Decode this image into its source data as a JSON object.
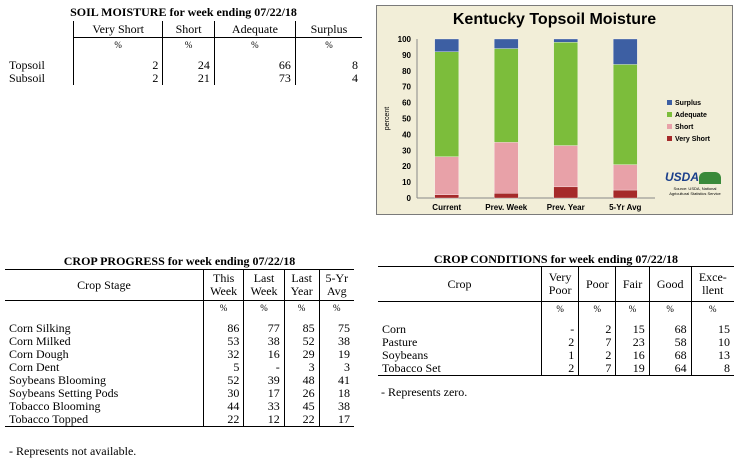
{
  "soil": {
    "title": "SOIL MOISTURE for week ending 07/22/18",
    "headers": [
      "Very Short",
      "Short",
      "Adequate",
      "Surplus"
    ],
    "unit": "%",
    "rows": [
      {
        "label": "Topsoil",
        "values": [
          "2",
          "24",
          "66",
          "8"
        ]
      },
      {
        "label": "Subsoil",
        "values": [
          "2",
          "21",
          "73",
          "4"
        ]
      }
    ]
  },
  "chart_data": {
    "type": "bar",
    "stacked": true,
    "title": "Kentucky Topsoil Moisture",
    "ylabel": "percent",
    "xlabel": "",
    "ylim": [
      0,
      100
    ],
    "yticks": [
      "0",
      "10",
      "20",
      "30",
      "40",
      "50",
      "60",
      "70",
      "80",
      "90",
      "100"
    ],
    "categories": [
      "Current",
      "Prev. Week",
      "Prev. Year",
      "5-Yr Avg"
    ],
    "series": [
      {
        "name": "Very Short",
        "color": "#a52a2a",
        "values": [
          2,
          3,
          7,
          5
        ]
      },
      {
        "name": "Short",
        "color": "#e8a1a8",
        "values": [
          24,
          32,
          26,
          16
        ]
      },
      {
        "name": "Adequate",
        "color": "#7cbd3b",
        "values": [
          66,
          59,
          65,
          63
        ]
      },
      {
        "name": "Surplus",
        "color": "#3d5fa3",
        "values": [
          8,
          6,
          2,
          16
        ]
      }
    ],
    "legend_order": [
      "Surplus",
      "Adequate",
      "Short",
      "Very Short"
    ],
    "legend": "right",
    "grid": false
  },
  "usda": {
    "logo_text": "USDA",
    "source": "Source: USDA, National Agricultural Statistics Service"
  },
  "progress": {
    "title": "CROP PROGRESS for week ending 07/22/18",
    "col_stage": "Crop Stage",
    "headers": [
      [
        "This",
        "Week"
      ],
      [
        "Last",
        "Week"
      ],
      [
        "Last",
        "Year"
      ],
      [
        "5-Yr",
        "Avg"
      ]
    ],
    "unit": "%",
    "rows": [
      {
        "label": "Corn Silking",
        "values": [
          "86",
          "77",
          "85",
          "75"
        ]
      },
      {
        "label": "Corn Milked",
        "values": [
          "53",
          "38",
          "52",
          "38"
        ]
      },
      {
        "label": "Corn Dough",
        "values": [
          "32",
          "16",
          "29",
          "19"
        ]
      },
      {
        "label": "Corn Dent",
        "values": [
          "5",
          "-",
          "3",
          "3"
        ]
      },
      {
        "label": "Soybeans Blooming",
        "values": [
          "52",
          "39",
          "48",
          "41"
        ]
      },
      {
        "label": "Soybeans Setting Pods",
        "values": [
          "30",
          "17",
          "26",
          "18"
        ]
      },
      {
        "label": "Tobacco Blooming",
        "values": [
          "44",
          "33",
          "45",
          "38"
        ]
      },
      {
        "label": "Tobacco Topped",
        "values": [
          "22",
          "12",
          "22",
          "17"
        ]
      }
    ],
    "note": "- Represents not available."
  },
  "conditions": {
    "title": "CROP CONDITIONS for week ending 07/22/18",
    "col_crop": "Crop",
    "headers": [
      [
        "Very",
        "Poor"
      ],
      [
        "Poor"
      ],
      [
        "Fair"
      ],
      [
        "Good"
      ],
      [
        "Exce-",
        "llent"
      ]
    ],
    "unit": "%",
    "rows": [
      {
        "label": "Corn",
        "values": [
          "-",
          "2",
          "15",
          "68",
          "15"
        ]
      },
      {
        "label": "Pasture",
        "values": [
          "2",
          "7",
          "23",
          "58",
          "10"
        ]
      },
      {
        "label": "Soybeans",
        "values": [
          "1",
          "2",
          "16",
          "68",
          "13"
        ]
      },
      {
        "label": "Tobacco Set",
        "values": [
          "2",
          "7",
          "19",
          "64",
          "8"
        ]
      }
    ],
    "note": "- Represents zero."
  }
}
